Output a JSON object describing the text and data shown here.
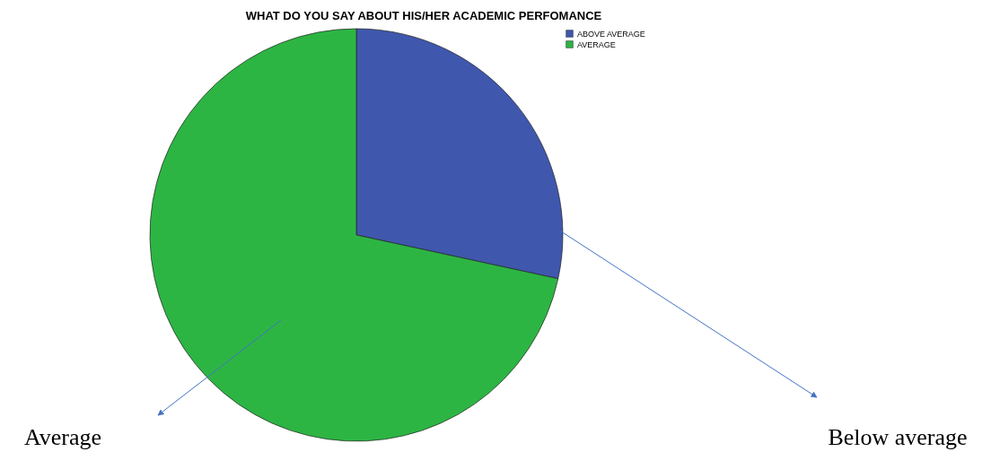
{
  "chart_data": {
    "type": "pie",
    "title": "WHAT DO YOU SAY ABOUT HIS/HER ACADEMIC PERFOMANCE",
    "categories": [
      "ABOVE AVERAGE",
      "AVERAGE"
    ],
    "values": [
      28.4,
      71.6
    ],
    "colors": [
      "#3f57ad",
      "#2db544"
    ],
    "legend": "top right",
    "annotations": [
      "Average",
      "Below average"
    ]
  }
}
